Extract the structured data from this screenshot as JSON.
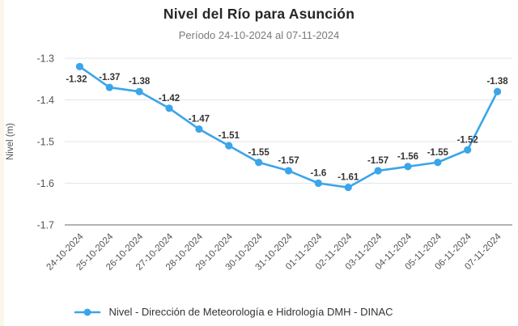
{
  "header": {
    "title": "Nivel del Río para Asunción",
    "subtitle": "Período 24-10-2024 al 07-11-2024"
  },
  "legend": {
    "label": "Nivel - Dirección de Meteorología e Hidrología DMH - DINAC",
    "marker_color": "#3aa5e9"
  },
  "colors": {
    "line": "#3aa5e9",
    "grid_line": "#e5e5e5",
    "axis_line": "#9a9a9a",
    "tick_label": "#545454",
    "data_label": "#333333",
    "title": "#262626",
    "subtitle": "#7a7a7a",
    "background": "#ffffff",
    "left_strip": "#faf6ea"
  },
  "chart_data": {
    "type": "line",
    "title": "Nivel del Río para Asunción",
    "subtitle": "Período 24-10-2024 al 07-11-2024",
    "categories": [
      "24-10-2024",
      "25-10-2024",
      "26-10-2024",
      "27-10-2024",
      "28-10-2024",
      "29-10-2024",
      "30-10-2024",
      "31-10-2024",
      "01-11-2024",
      "02-11-2024",
      "03-11-2024",
      "04-11-2024",
      "05-11-2024",
      "06-11-2024",
      "07-11-2024"
    ],
    "series": [
      {
        "name": "Nivel - Dirección de Meteorología e Hidrología DMH - DINAC",
        "values": [
          -1.32,
          -1.37,
          -1.38,
          -1.42,
          -1.47,
          -1.51,
          -1.55,
          -1.57,
          -1.6,
          -1.61,
          -1.57,
          -1.56,
          -1.55,
          -1.52,
          -1.38
        ]
      }
    ],
    "point_labels": [
      "-1.32",
      "-1.37",
      "-1.38",
      "-1.42",
      "-1.47",
      "-1.51",
      "-1.55",
      "-1.57",
      "-1.6",
      "-1.61",
      "-1.57",
      "-1.56",
      "-1.55",
      "-1.52",
      "-1.38"
    ],
    "xlabel": "",
    "ylabel": "Nivel (m)",
    "ylim": [
      -1.7,
      -1.3
    ],
    "yticks": [
      -1.3,
      -1.4,
      -1.5,
      -1.6,
      -1.7
    ],
    "grid": true,
    "legend_position": "bottom",
    "line_color": "#3aa5e9"
  }
}
